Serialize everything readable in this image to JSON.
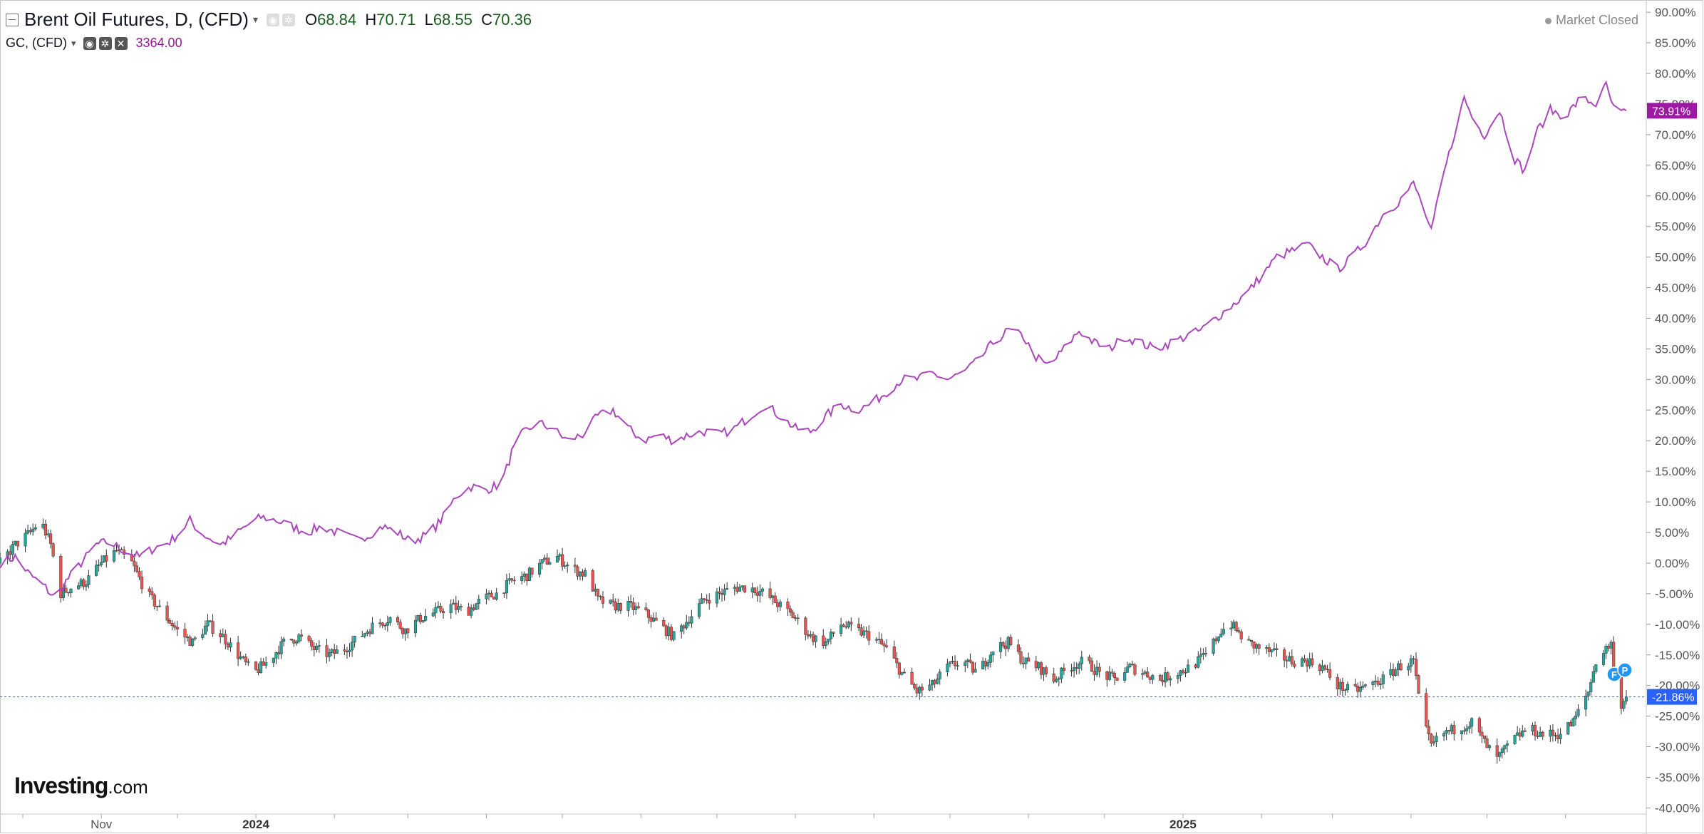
{
  "legend": {
    "main_symbol": "Brent Oil Futures, D, (CFD)",
    "open_label": "O",
    "open": "68.84",
    "high_label": "H",
    "high": "70.71",
    "low_label": "L",
    "low": "68.55",
    "close_label": "C",
    "close": "70.36",
    "compare_symbol": "GC, (CFD)",
    "compare_value": "3364.00"
  },
  "status": {
    "market": "Market Closed"
  },
  "branding": {
    "logo": "Investing",
    "logo_suffix": ".com"
  },
  "colors": {
    "up_candle": "#26a69a",
    "down_candle": "#ef5350",
    "compare_line": "#ab47bc",
    "compare_badge": "#9c1aa3",
    "last_price_line": "#2962ff",
    "last_price_badge": "#2962ff"
  },
  "icons": [
    "collapse-icon",
    "eye-icon",
    "gear-icon",
    "close-icon",
    "dropdown-icon"
  ],
  "chart_data": {
    "type": "line",
    "y_axis_unit": "%",
    "ylim": [
      -41,
      92
    ],
    "y_ticks": [
      "90.00%",
      "85.00%",
      "80.00%",
      "75.00%",
      "70.00%",
      "65.00%",
      "60.00%",
      "55.00%",
      "50.00%",
      "45.00%",
      "40.00%",
      "35.00%",
      "30.00%",
      "25.00%",
      "20.00%",
      "15.00%",
      "10.00%",
      "5.00%",
      "0.00%",
      "-5.00%",
      "-10.00%",
      "-15.00%",
      "-20.00%",
      "-25.00%",
      "-30.00%",
      "-35.00%",
      "-40.00%"
    ],
    "x_ticks": [
      "Nov",
      "2024",
      "2025"
    ],
    "x_range": [
      "2023-09-22",
      "2025-06-25"
    ],
    "last_values": {
      "compare": "73.91%",
      "main": "-21.86%"
    },
    "markers": [
      "F",
      "P"
    ],
    "series": [
      {
        "name": "GC, (CFD)",
        "style": "line",
        "points": [
          [
            "2023-09-22",
            0
          ],
          [
            "2023-09-28",
            1
          ],
          [
            "2023-10-04",
            -2
          ],
          [
            "2023-10-10",
            -4
          ],
          [
            "2023-10-14",
            -6
          ],
          [
            "2023-10-18",
            -3
          ],
          [
            "2023-10-24",
            0
          ],
          [
            "2023-10-30",
            3
          ],
          [
            "2023-11-04",
            3.5
          ],
          [
            "2023-11-10",
            2
          ],
          [
            "2023-11-16",
            1
          ],
          [
            "2023-11-22",
            2.5
          ],
          [
            "2023-11-28",
            3.5
          ],
          [
            "2023-12-02",
            5
          ],
          [
            "2023-12-06",
            7
          ],
          [
            "2023-12-10",
            5
          ],
          [
            "2023-12-14",
            4
          ],
          [
            "2023-12-18",
            3
          ],
          [
            "2023-12-22",
            4
          ],
          [
            "2023-12-28",
            6
          ],
          [
            "2024-01-03",
            7.5
          ],
          [
            "2024-01-09",
            7
          ],
          [
            "2024-01-15",
            6
          ],
          [
            "2024-01-21",
            5
          ],
          [
            "2024-01-27",
            6
          ],
          [
            "2024-02-02",
            5
          ],
          [
            "2024-02-08",
            4
          ],
          [
            "2024-02-14",
            4.5
          ],
          [
            "2024-02-20",
            6
          ],
          [
            "2024-02-26",
            5
          ],
          [
            "2024-03-02",
            3.5
          ],
          [
            "2024-03-08",
            4.5
          ],
          [
            "2024-03-12",
            6
          ],
          [
            "2024-03-16",
            8
          ],
          [
            "2024-03-20",
            11
          ],
          [
            "2024-03-26",
            12.5
          ],
          [
            "2024-04-01",
            12
          ],
          [
            "2024-04-07",
            13
          ],
          [
            "2024-04-11",
            18
          ],
          [
            "2024-04-15",
            21
          ],
          [
            "2024-04-21",
            23
          ],
          [
            "2024-04-27",
            22
          ],
          [
            "2024-05-03",
            20
          ],
          [
            "2024-05-09",
            21
          ],
          [
            "2024-05-15",
            24
          ],
          [
            "2024-05-21",
            25
          ],
          [
            "2024-05-27",
            22
          ],
          [
            "2024-06-02",
            20
          ],
          [
            "2024-06-08",
            21
          ],
          [
            "2024-06-14",
            20
          ],
          [
            "2024-06-20",
            21
          ],
          [
            "2024-06-26",
            21.5
          ],
          [
            "2024-07-02",
            21
          ],
          [
            "2024-07-08",
            22
          ],
          [
            "2024-07-14",
            24
          ],
          [
            "2024-07-20",
            26
          ],
          [
            "2024-07-26",
            24
          ],
          [
            "2024-08-01",
            22
          ],
          [
            "2024-08-07",
            21.5
          ],
          [
            "2024-08-13",
            24
          ],
          [
            "2024-08-19",
            26
          ],
          [
            "2024-08-25",
            25
          ],
          [
            "2024-08-31",
            26
          ],
          [
            "2024-09-06",
            28
          ],
          [
            "2024-09-12",
            30
          ],
          [
            "2024-09-18",
            30
          ],
          [
            "2024-09-24",
            31
          ],
          [
            "2024-09-30",
            30
          ],
          [
            "2024-10-06",
            31
          ],
          [
            "2024-10-12",
            33
          ],
          [
            "2024-10-18",
            36
          ],
          [
            "2024-10-24",
            38
          ],
          [
            "2024-10-30",
            37
          ],
          [
            "2024-11-03",
            34
          ],
          [
            "2024-11-09",
            32
          ],
          [
            "2024-11-15",
            35
          ],
          [
            "2024-11-21",
            38
          ],
          [
            "2024-11-27",
            36
          ],
          [
            "2024-12-03",
            35
          ],
          [
            "2024-12-09",
            37
          ],
          [
            "2024-12-15",
            36
          ],
          [
            "2024-12-21",
            35
          ],
          [
            "2024-12-27",
            36
          ],
          [
            "2025-01-02",
            37
          ],
          [
            "2025-01-08",
            38
          ],
          [
            "2025-01-14",
            40
          ],
          [
            "2025-01-20",
            42
          ],
          [
            "2025-01-26",
            44
          ],
          [
            "2025-02-01",
            47
          ],
          [
            "2025-02-07",
            50
          ],
          [
            "2025-02-13",
            51
          ],
          [
            "2025-02-19",
            52
          ],
          [
            "2025-02-25",
            50
          ],
          [
            "2025-03-03",
            48
          ],
          [
            "2025-03-09",
            50
          ],
          [
            "2025-03-15",
            53
          ],
          [
            "2025-03-21",
            57
          ],
          [
            "2025-03-27",
            59
          ],
          [
            "2025-04-02",
            62
          ],
          [
            "2025-04-06",
            58
          ],
          [
            "2025-04-09",
            54
          ],
          [
            "2025-04-13",
            62
          ],
          [
            "2025-04-18",
            70
          ],
          [
            "2025-04-22",
            76
          ],
          [
            "2025-04-26",
            72
          ],
          [
            "2025-04-30",
            70
          ],
          [
            "2025-05-06",
            74
          ],
          [
            "2025-05-12",
            66
          ],
          [
            "2025-05-16",
            64
          ],
          [
            "2025-05-20",
            70
          ],
          [
            "2025-05-26",
            74
          ],
          [
            "2025-06-01",
            73
          ],
          [
            "2025-06-07",
            76
          ],
          [
            "2025-06-13",
            75
          ],
          [
            "2025-06-17",
            78
          ],
          [
            "2025-06-21",
            73
          ],
          [
            "2025-06-25",
            73.91
          ]
        ]
      },
      {
        "name": "Brent Oil Futures, D, (CFD)",
        "style": "candlestick",
        "points": [
          [
            "2023-09-22",
            0
          ],
          [
            "2023-09-28",
            3
          ],
          [
            "2023-10-04",
            5
          ],
          [
            "2023-10-08",
            7
          ],
          [
            "2023-10-12",
            3
          ],
          [
            "2023-10-16",
            -5
          ],
          [
            "2023-10-20",
            -4
          ],
          [
            "2023-10-26",
            -3
          ],
          [
            "2023-11-01",
            0
          ],
          [
            "2023-11-07",
            2
          ],
          [
            "2023-11-13",
            0
          ],
          [
            "2023-11-19",
            -5
          ],
          [
            "2023-11-25",
            -8
          ],
          [
            "2023-12-01",
            -11
          ],
          [
            "2023-12-07",
            -13
          ],
          [
            "2023-12-13",
            -10
          ],
          [
            "2023-12-19",
            -12
          ],
          [
            "2023-12-25",
            -15
          ],
          [
            "2023-12-31",
            -18
          ],
          [
            "2024-01-06",
            -16
          ],
          [
            "2024-01-12",
            -13
          ],
          [
            "2024-01-18",
            -12
          ],
          [
            "2024-01-24",
            -14
          ],
          [
            "2024-01-30",
            -15
          ],
          [
            "2024-02-05",
            -14
          ],
          [
            "2024-02-11",
            -12
          ],
          [
            "2024-02-17",
            -10
          ],
          [
            "2024-02-23",
            -9
          ],
          [
            "2024-02-29",
            -11
          ],
          [
            "2024-03-06",
            -9
          ],
          [
            "2024-03-12",
            -8
          ],
          [
            "2024-03-18",
            -7
          ],
          [
            "2024-03-24",
            -8
          ],
          [
            "2024-03-30",
            -6
          ],
          [
            "2024-04-05",
            -5
          ],
          [
            "2024-04-11",
            -3
          ],
          [
            "2024-04-17",
            -2
          ],
          [
            "2024-04-23",
            0
          ],
          [
            "2024-04-29",
            1
          ],
          [
            "2024-05-05",
            -1
          ],
          [
            "2024-05-11",
            -2
          ],
          [
            "2024-05-15",
            -6
          ],
          [
            "2024-05-21",
            -7
          ],
          [
            "2024-05-27",
            -7
          ],
          [
            "2024-06-02",
            -8
          ],
          [
            "2024-06-08",
            -10
          ],
          [
            "2024-06-14",
            -12
          ],
          [
            "2024-06-20",
            -9
          ],
          [
            "2024-06-26",
            -6
          ],
          [
            "2024-07-02",
            -5
          ],
          [
            "2024-07-08",
            -4
          ],
          [
            "2024-07-14",
            -4
          ],
          [
            "2024-07-20",
            -5
          ],
          [
            "2024-07-26",
            -7
          ],
          [
            "2024-08-01",
            -9
          ],
          [
            "2024-08-07",
            -12
          ],
          [
            "2024-08-13",
            -13
          ],
          [
            "2024-08-19",
            -10
          ],
          [
            "2024-08-25",
            -11
          ],
          [
            "2024-08-31",
            -12
          ],
          [
            "2024-09-06",
            -14
          ],
          [
            "2024-09-12",
            -18
          ],
          [
            "2024-09-18",
            -21
          ],
          [
            "2024-09-24",
            -20
          ],
          [
            "2024-09-30",
            -17
          ],
          [
            "2024-10-06",
            -16
          ],
          [
            "2024-10-12",
            -18
          ],
          [
            "2024-10-18",
            -14
          ],
          [
            "2024-10-24",
            -13
          ],
          [
            "2024-10-30",
            -16
          ],
          [
            "2024-11-05",
            -17
          ],
          [
            "2024-11-11",
            -19
          ],
          [
            "2024-11-17",
            -17
          ],
          [
            "2024-11-23",
            -16
          ],
          [
            "2024-11-29",
            -18
          ],
          [
            "2024-12-05",
            -19
          ],
          [
            "2024-12-11",
            -17
          ],
          [
            "2024-12-17",
            -18
          ],
          [
            "2024-12-23",
            -19
          ],
          [
            "2024-12-29",
            -18
          ],
          [
            "2025-01-04",
            -17
          ],
          [
            "2025-01-10",
            -15
          ],
          [
            "2025-01-16",
            -11
          ],
          [
            "2025-01-20",
            -10
          ],
          [
            "2025-01-26",
            -13
          ],
          [
            "2025-02-01",
            -14
          ],
          [
            "2025-02-07",
            -15
          ],
          [
            "2025-02-13",
            -16
          ],
          [
            "2025-02-19",
            -16
          ],
          [
            "2025-02-25",
            -17
          ],
          [
            "2025-03-03",
            -20
          ],
          [
            "2025-03-09",
            -21
          ],
          [
            "2025-03-15",
            -20
          ],
          [
            "2025-03-21",
            -19
          ],
          [
            "2025-03-27",
            -17
          ],
          [
            "2025-04-02",
            -16
          ],
          [
            "2025-04-05",
            -25
          ],
          [
            "2025-04-09",
            -30
          ],
          [
            "2025-04-13",
            -28
          ],
          [
            "2025-04-19",
            -27
          ],
          [
            "2025-04-25",
            -26
          ],
          [
            "2025-05-01",
            -30
          ],
          [
            "2025-05-05",
            -32
          ],
          [
            "2025-05-11",
            -29
          ],
          [
            "2025-05-17",
            -27
          ],
          [
            "2025-05-23",
            -28
          ],
          [
            "2025-05-29",
            -28
          ],
          [
            "2025-06-04",
            -26
          ],
          [
            "2025-06-10",
            -21
          ],
          [
            "2025-06-13",
            -16
          ],
          [
            "2025-06-17",
            -14
          ],
          [
            "2025-06-19",
            -13
          ],
          [
            "2025-06-21",
            -24
          ],
          [
            "2025-06-25",
            -21.86
          ]
        ]
      }
    ]
  }
}
